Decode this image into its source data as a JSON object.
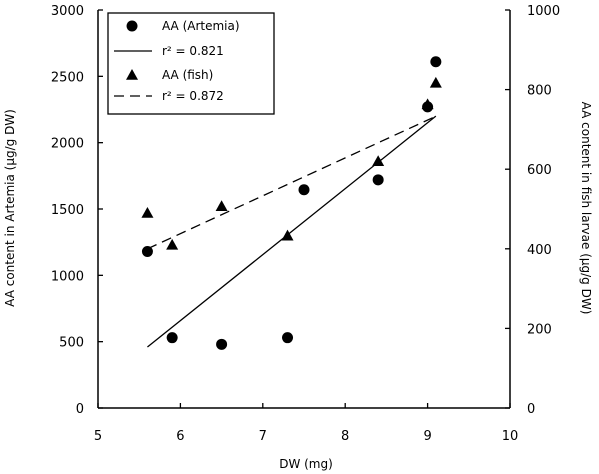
{
  "chart_data": {
    "type": "scatter",
    "xlabel": "DW (mg)",
    "ylabel_left": "AA content in Artemia (µg/g DW)",
    "ylabel_right": "AA content in fish larvae (µg/g DW)",
    "xlim": [
      5,
      10
    ],
    "ylim_left": [
      0,
      3000
    ],
    "ylim_right": [
      0,
      1000
    ],
    "x_ticks": [
      "5",
      "6",
      "7",
      "8",
      "9",
      "10"
    ],
    "y_ticks_left": [
      "0",
      "500",
      "1000",
      "1500",
      "2000",
      "2500",
      "3000"
    ],
    "y_ticks_right": [
      "0",
      "200",
      "400",
      "600",
      "800",
      "1000"
    ],
    "legend_position": "top-left",
    "grid": false,
    "series": [
      {
        "name": "AA (Artemia)",
        "marker": "circle",
        "axis": "left",
        "points": [
          [
            5.6,
            1180
          ],
          [
            5.9,
            530
          ],
          [
            6.5,
            480
          ],
          [
            7.3,
            530
          ],
          [
            7.5,
            1645
          ],
          [
            8.4,
            1720
          ],
          [
            9.0,
            2270
          ],
          [
            9.1,
            2610
          ]
        ]
      },
      {
        "name": "r² = 0.821",
        "line_style": "solid",
        "axis": "left",
        "points": [
          [
            5.6,
            460
          ],
          [
            9.1,
            2200
          ]
        ]
      },
      {
        "name": "AA (fish)",
        "marker": "triangle",
        "axis": "right",
        "points": [
          [
            5.6,
            490
          ],
          [
            5.9,
            410
          ],
          [
            6.5,
            507
          ],
          [
            7.3,
            433
          ],
          [
            8.4,
            620
          ],
          [
            9.0,
            763
          ],
          [
            9.1,
            817
          ]
        ]
      },
      {
        "name": "r² = 0.872",
        "line_style": "dashed",
        "axis": "right",
        "points": [
          [
            5.6,
            400
          ],
          [
            9.1,
            733
          ]
        ]
      }
    ]
  }
}
